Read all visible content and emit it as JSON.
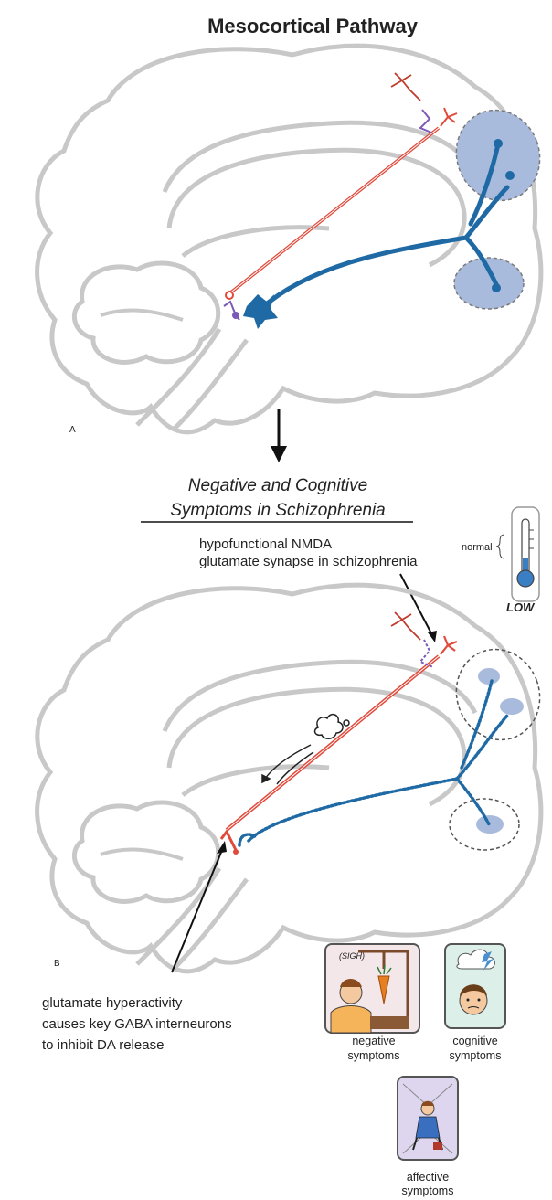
{
  "title": "Mesocortical Pathway",
  "panel_a_label": "A",
  "panel_b_label": "B",
  "subtitle_line1": "Negative and Cognitive",
  "subtitle_line2": "Symptoms in Schizophrenia",
  "nmda_note_line1": "hypofunctional NMDA",
  "nmda_note_line2": "glutamate synapse in schizophrenia",
  "thermometer": {
    "normal_label": "normal",
    "level_label": "LOW"
  },
  "glutamate_note": [
    "glutamate hyperactivity",
    "causes key GABA interneurons",
    "to inhibit DA release"
  ],
  "symptom_cards": {
    "negative": {
      "speech": "(SIGH)",
      "label_line1": "negative",
      "label_line2": "symptoms"
    },
    "cognitive": {
      "label_line1": "cognitive",
      "label_line2": "symptoms"
    },
    "affective": {
      "label_line1": "affective",
      "label_line2": "symptoms"
    }
  },
  "colors": {
    "brain_outline": "#c8c8c8",
    "dopamine_pathway": "#1f6aa5",
    "glutamate_neuron": "#e24a3b",
    "gaba_interneuron": "#7b5bb5",
    "target_region": "#a9bbdc",
    "thermometer_fluid": "#3a7fc4"
  }
}
